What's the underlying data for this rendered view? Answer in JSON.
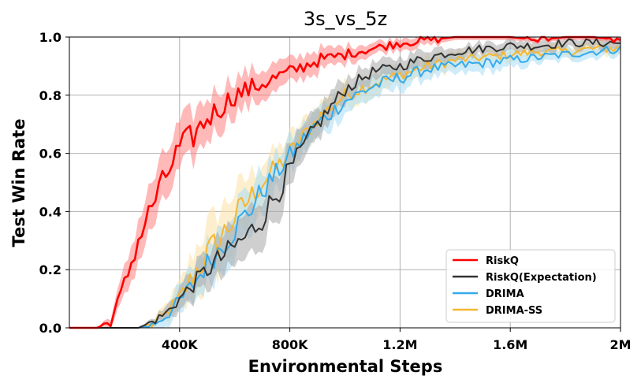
{
  "chart_data": {
    "type": "line",
    "title": "3s_vs_5z",
    "xlabel": "Environmental Steps",
    "ylabel": "Test Win Rate",
    "xlim": [
      0,
      2000000
    ],
    "ylim": [
      0.0,
      1.0
    ],
    "xticks": [
      400000,
      800000,
      1200000,
      1600000,
      2000000
    ],
    "xtick_labels": [
      "400K",
      "800K",
      "1.2M",
      "1.6M",
      "2M"
    ],
    "yticks": [
      0.0,
      0.2,
      0.4,
      0.6,
      0.8,
      1.0
    ],
    "ytick_labels": [
      "0.0",
      "0.2",
      "0.4",
      "0.6",
      "0.8",
      "1.0"
    ],
    "grid": true,
    "legend_position": "bottom-right",
    "x": [
      0,
      100000,
      150000,
      200000,
      250000,
      300000,
      350000,
      400000,
      450000,
      500000,
      550000,
      600000,
      650000,
      700000,
      750000,
      800000,
      850000,
      900000,
      950000,
      1000000,
      1100000,
      1200000,
      1300000,
      1400000,
      1500000,
      1600000,
      1700000,
      1800000,
      1900000,
      2000000
    ],
    "series": [
      {
        "name": "RiskQ",
        "color": "#ff0000",
        "band_color": "#ff8080",
        "values": [
          0.0,
          0.0,
          0.02,
          0.15,
          0.3,
          0.42,
          0.52,
          0.62,
          0.66,
          0.72,
          0.76,
          0.8,
          0.82,
          0.84,
          0.86,
          0.88,
          0.9,
          0.92,
          0.93,
          0.94,
          0.96,
          0.98,
          0.99,
          1.0,
          1.0,
          1.0,
          0.99,
          1.0,
          1.0,
          0.99
        ],
        "spread": [
          0.0,
          0.0,
          0.02,
          0.05,
          0.07,
          0.08,
          0.08,
          0.08,
          0.08,
          0.07,
          0.07,
          0.06,
          0.06,
          0.05,
          0.05,
          0.04,
          0.04,
          0.04,
          0.03,
          0.03,
          0.02,
          0.02,
          0.02,
          0.01,
          0.01,
          0.01,
          0.01,
          0.01,
          0.01,
          0.01
        ]
      },
      {
        "name": "RiskQ(Expectation)",
        "color": "#333333",
        "band_color": "#a8a8a8",
        "values": [
          0.0,
          0.0,
          0.0,
          0.0,
          0.0,
          0.02,
          0.05,
          0.1,
          0.15,
          0.2,
          0.24,
          0.28,
          0.32,
          0.38,
          0.46,
          0.54,
          0.62,
          0.7,
          0.76,
          0.82,
          0.88,
          0.9,
          0.93,
          0.95,
          0.96,
          0.97,
          0.97,
          0.98,
          0.98,
          0.98
        ],
        "spread": [
          0.0,
          0.0,
          0.0,
          0.0,
          0.0,
          0.01,
          0.02,
          0.04,
          0.05,
          0.06,
          0.07,
          0.07,
          0.08,
          0.08,
          0.08,
          0.07,
          0.06,
          0.05,
          0.05,
          0.04,
          0.03,
          0.03,
          0.03,
          0.02,
          0.02,
          0.02,
          0.02,
          0.02,
          0.02,
          0.02
        ]
      },
      {
        "name": "DRIMA",
        "color": "#33aaee",
        "band_color": "#a8dcf6",
        "values": [
          0.0,
          0.0,
          0.0,
          0.0,
          0.0,
          0.01,
          0.04,
          0.09,
          0.15,
          0.22,
          0.28,
          0.34,
          0.4,
          0.47,
          0.53,
          0.59,
          0.65,
          0.7,
          0.74,
          0.78,
          0.83,
          0.86,
          0.89,
          0.9,
          0.91,
          0.92,
          0.93,
          0.94,
          0.95,
          0.96
        ],
        "spread": [
          0.0,
          0.0,
          0.0,
          0.0,
          0.0,
          0.01,
          0.03,
          0.05,
          0.06,
          0.07,
          0.08,
          0.08,
          0.08,
          0.07,
          0.06,
          0.06,
          0.05,
          0.05,
          0.05,
          0.04,
          0.04,
          0.04,
          0.03,
          0.03,
          0.03,
          0.03,
          0.02,
          0.02,
          0.02,
          0.02
        ]
      },
      {
        "name": "DRIMA-SS",
        "color": "#f5b731",
        "band_color": "#fbe2a6",
        "values": [
          0.0,
          0.0,
          0.0,
          0.0,
          0.0,
          0.01,
          0.05,
          0.1,
          0.18,
          0.25,
          0.31,
          0.38,
          0.44,
          0.5,
          0.55,
          0.6,
          0.66,
          0.72,
          0.76,
          0.8,
          0.84,
          0.87,
          0.9,
          0.92,
          0.93,
          0.94,
          0.95,
          0.95,
          0.96,
          0.96
        ],
        "spread": [
          0.0,
          0.0,
          0.0,
          0.0,
          0.0,
          0.01,
          0.03,
          0.05,
          0.08,
          0.1,
          0.1,
          0.09,
          0.08,
          0.07,
          0.06,
          0.06,
          0.05,
          0.05,
          0.04,
          0.04,
          0.04,
          0.03,
          0.03,
          0.03,
          0.02,
          0.02,
          0.02,
          0.02,
          0.02,
          0.02
        ]
      }
    ]
  }
}
